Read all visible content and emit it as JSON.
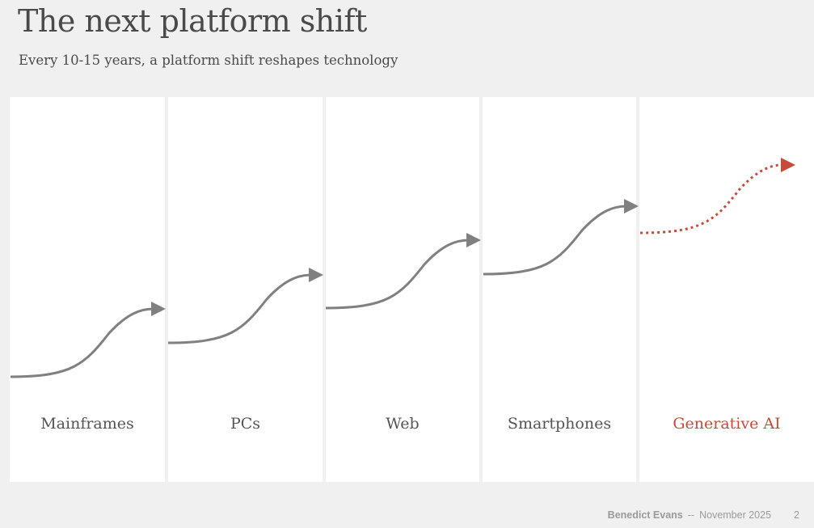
{
  "header": {
    "title": "The next platform shift",
    "subtitle": "Every 10-15 years, a platform shift reshapes technology"
  },
  "platforms": [
    {
      "label": "Mainframes"
    },
    {
      "label": "PCs"
    },
    {
      "label": "Web"
    },
    {
      "label": "Smartphones"
    },
    {
      "label": "Generative AI",
      "highlight": true
    }
  ],
  "footer": {
    "author": "Benedict Evans",
    "separator": "--",
    "date": "November 2025",
    "page": "2"
  },
  "colors": {
    "curve": "#808080",
    "highlight": "#c84b3a"
  }
}
